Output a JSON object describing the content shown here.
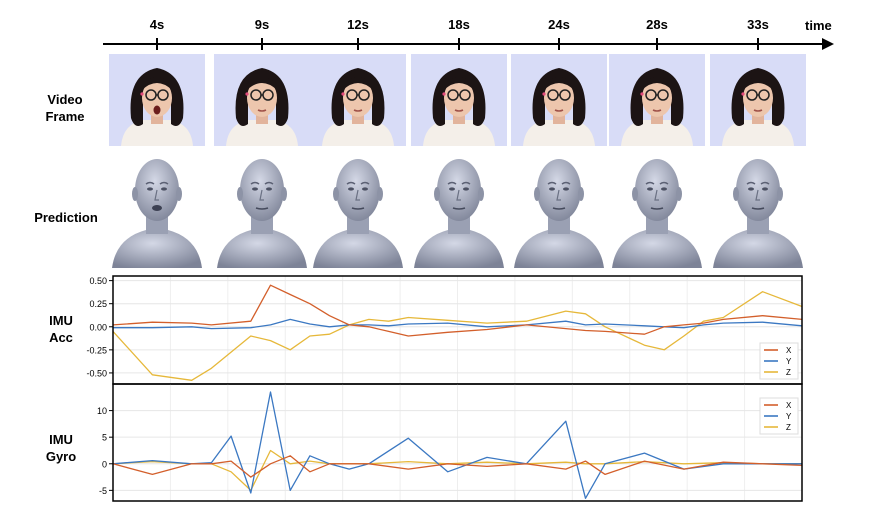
{
  "timeline": {
    "ticks": [
      "4s",
      "9s",
      "12s",
      "18s",
      "24s",
      "28s",
      "33s"
    ],
    "axis_label": "time"
  },
  "rows": {
    "video": [
      "Video",
      "Frame"
    ],
    "prediction": "Prediction",
    "acc": [
      "IMU",
      "Acc"
    ],
    "gyro": [
      "IMU",
      "Gyro"
    ]
  },
  "colors": {
    "X": "#d35f2b",
    "Y": "#3b78c2",
    "Z": "#e6b83a",
    "frame_bg": "#d8dcf7",
    "head": "#a9afc2"
  },
  "chart_data": [
    {
      "type": "line",
      "title": "",
      "ylabel": "",
      "ylim": [
        -0.62,
        0.55
      ],
      "yticks": [
        "0.50",
        "0.25",
        "0.00",
        "-0.25",
        "-0.50"
      ],
      "ytick_values": [
        0.5,
        0.25,
        0.0,
        -0.25,
        -0.5
      ],
      "x": [
        0,
        2,
        4,
        5,
        7,
        8,
        9,
        10,
        11,
        12,
        13,
        14,
        15,
        17,
        19,
        21,
        23,
        24,
        25,
        27,
        28,
        29,
        30,
        31,
        33,
        35
      ],
      "series": [
        {
          "name": "X",
          "values": [
            0.02,
            0.05,
            0.04,
            0.02,
            0.06,
            0.45,
            0.35,
            0.25,
            0.12,
            0.02,
            0.0,
            -0.05,
            -0.1,
            -0.06,
            -0.03,
            0.02,
            -0.02,
            -0.04,
            -0.05,
            -0.08,
            0.0,
            0.02,
            0.04,
            0.08,
            0.12,
            0.08
          ]
        },
        {
          "name": "Y",
          "values": [
            -0.01,
            -0.01,
            0.0,
            -0.02,
            -0.01,
            0.02,
            0.08,
            0.03,
            0.0,
            0.02,
            0.02,
            0.01,
            0.03,
            0.04,
            0.0,
            0.02,
            0.06,
            0.02,
            0.03,
            0.01,
            0.0,
            -0.01,
            0.02,
            0.04,
            0.05,
            0.01
          ]
        },
        {
          "name": "Z",
          "values": [
            -0.05,
            -0.52,
            -0.58,
            -0.45,
            -0.1,
            -0.15,
            -0.25,
            -0.1,
            -0.08,
            0.02,
            0.08,
            0.06,
            0.1,
            0.07,
            0.04,
            0.06,
            0.17,
            0.14,
            0.0,
            -0.2,
            -0.25,
            -0.1,
            0.06,
            0.1,
            0.38,
            0.22
          ]
        }
      ],
      "legend": [
        "X",
        "Y",
        "Z"
      ],
      "legend_placement": "bottom-right",
      "grid": true
    },
    {
      "type": "line",
      "title": "",
      "ylabel": "",
      "ylim": [
        -7,
        15
      ],
      "yticks": [
        "10",
        "5",
        "0",
        "-5"
      ],
      "ytick_values": [
        10,
        5,
        0,
        -5
      ],
      "x": [
        0,
        2,
        4,
        5,
        6,
        7,
        8,
        9,
        10,
        11,
        12,
        13,
        15,
        17,
        19,
        21,
        23,
        24,
        25,
        27,
        29,
        31,
        33,
        35
      ],
      "series": [
        {
          "name": "X",
          "values": [
            0,
            -2.0,
            0,
            0,
            0.5,
            -2.5,
            0,
            1.5,
            -1.5,
            0,
            0,
            0,
            -1.0,
            0,
            -0.5,
            0,
            -1.0,
            0.5,
            -2.0,
            0.5,
            -1.0,
            0.3,
            0,
            -0.3
          ]
        },
        {
          "name": "Y",
          "values": [
            0,
            0.6,
            0,
            0.2,
            5.2,
            -5.5,
            13.5,
            -5.0,
            1.5,
            0,
            -1.0,
            0,
            4.8,
            -1.5,
            1.2,
            0,
            8.0,
            -6.5,
            0,
            2.0,
            -1.0,
            0,
            0,
            0
          ]
        },
        {
          "name": "Z",
          "values": [
            0,
            0.4,
            0,
            0,
            -1.5,
            -5.0,
            2.5,
            0,
            0.5,
            0,
            0,
            0,
            0.4,
            0,
            0.3,
            0,
            0.3,
            0,
            0,
            0.4,
            0,
            0.2,
            0,
            0
          ]
        }
      ],
      "legend": [
        "X",
        "Y",
        "Z"
      ],
      "legend_placement": "top-right",
      "grid": true
    }
  ]
}
